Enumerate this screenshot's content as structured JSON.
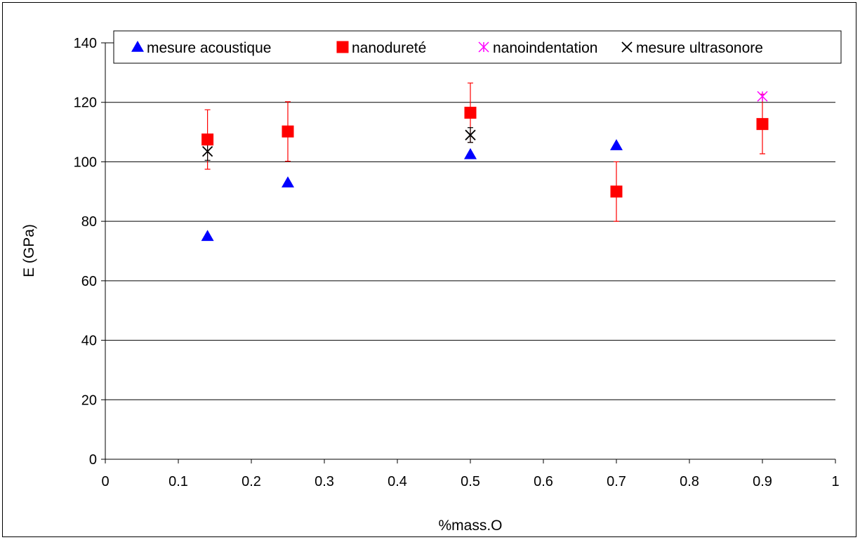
{
  "chart_data": {
    "type": "scatter",
    "title": "",
    "xlabel": "%mass.O",
    "ylabel": "E (GPa)",
    "xlim": [
      0,
      1
    ],
    "ylim": [
      0,
      140
    ],
    "x_ticks": [
      "0",
      "0.1",
      "0.2",
      "0.3",
      "0.4",
      "0.5",
      "0.6",
      "0.7",
      "0.8",
      "0.9",
      "1"
    ],
    "y_ticks": [
      "0",
      "20",
      "40",
      "60",
      "80",
      "100",
      "120",
      "140"
    ],
    "grid": "horizontal",
    "legend_position": "top",
    "series": [
      {
        "name": "mesure acoustique",
        "marker": "triangle",
        "color": "#0000ff",
        "points": [
          {
            "x": 0.14,
            "y": 75
          },
          {
            "x": 0.25,
            "y": 93
          },
          {
            "x": 0.5,
            "y": 102.5
          },
          {
            "x": 0.7,
            "y": 105.5
          }
        ]
      },
      {
        "name": "nanodureté",
        "marker": "square",
        "color": "#ff0000",
        "points": [
          {
            "x": 0.14,
            "y": 107.5,
            "err": 10
          },
          {
            "x": 0.25,
            "y": 110.2,
            "err": 10
          },
          {
            "x": 0.5,
            "y": 116.5,
            "err": 10
          },
          {
            "x": 0.7,
            "y": 90,
            "err": 10
          },
          {
            "x": 0.9,
            "y": 112.7,
            "err": 10
          }
        ]
      },
      {
        "name": "nanoindentation",
        "marker": "asterisk",
        "color": "#ff00ff",
        "points": [
          {
            "x": 0.9,
            "y": 122
          }
        ]
      },
      {
        "name": "mesure ultrasonore",
        "marker": "x",
        "color": "#000000",
        "points": [
          {
            "x": 0.14,
            "y": 103.5,
            "err": 3
          },
          {
            "x": 0.5,
            "y": 109,
            "err": 2.5
          }
        ]
      }
    ]
  }
}
